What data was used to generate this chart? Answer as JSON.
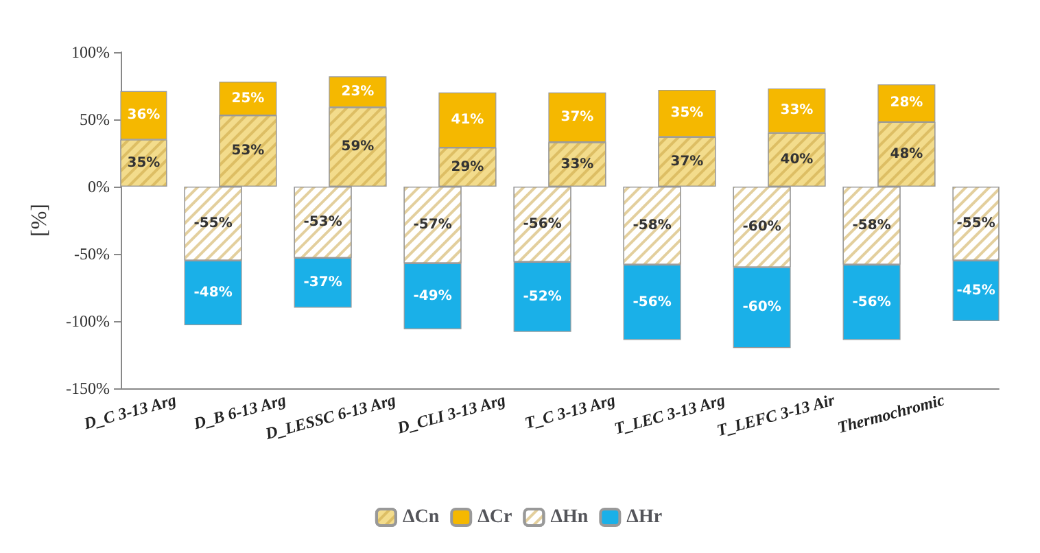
{
  "chart_data": {
    "type": "bar",
    "stacked": true,
    "ylabel": "[%]",
    "categories": [
      "D_C 3-13 Arg",
      "D_B 6-13 Arg",
      "D_LESSC 6-13 Arg",
      "D_CLI 3-13 Arg",
      "T_C 3-13 Arg",
      "T_LEC 3-13 Arg",
      "T_LEFC 3-13 Air",
      "Thermochromic"
    ],
    "series": [
      {
        "name": "ΔCn",
        "color": "#f3dc8c",
        "values": [
          35,
          53,
          59,
          29,
          33,
          37,
          40,
          48
        ],
        "value_labels": [
          "35%",
          "53%",
          "59%",
          "29%",
          "33%",
          "37%",
          "40%",
          "48%"
        ]
      },
      {
        "name": "ΔCr",
        "color": "#f5b800",
        "values": [
          36,
          25,
          23,
          41,
          37,
          35,
          33,
          28
        ],
        "value_labels": [
          "36%",
          "25%",
          "23%",
          "41%",
          "37%",
          "35%",
          "33%",
          "28%"
        ]
      },
      {
        "name": "ΔHn",
        "color": "#ffffff",
        "values": [
          -55,
          -53,
          -57,
          -56,
          -58,
          -60,
          -58,
          -55
        ],
        "value_labels": [
          "-55%",
          "-53%",
          "-57%",
          "-56%",
          "-58%",
          "-60%",
          "-58%",
          "-55%"
        ]
      },
      {
        "name": "ΔHr",
        "color": "#1ab0e8",
        "values": [
          -48,
          -37,
          -49,
          -52,
          -56,
          -60,
          -56,
          -45
        ],
        "value_labels": [
          "-48%",
          "-37%",
          "-49%",
          "-52%",
          "-56%",
          "-60%",
          "-56%",
          "-45%"
        ]
      }
    ],
    "ylim": [
      -150,
      100
    ],
    "yticks": [
      {
        "value": -150,
        "label": "-150%"
      },
      {
        "value": -100,
        "label": "-100%"
      },
      {
        "value": -50,
        "label": "-50%"
      },
      {
        "value": 0,
        "label": "0%"
      },
      {
        "value": 50,
        "label": "50%"
      },
      {
        "value": 100,
        "label": "100%"
      }
    ],
    "grid": false,
    "legend": "bottom"
  }
}
